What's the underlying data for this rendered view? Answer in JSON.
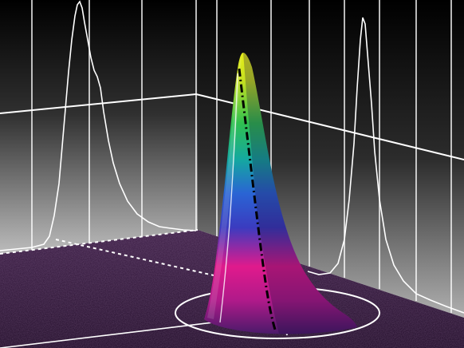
{
  "image": {
    "subject": "3d-gaussian-beam-profile",
    "colors": {
      "background_top": "#000000",
      "background_bottom": "#b8b8b8",
      "floor": "#2a0f33",
      "grid_line": "#ffffff",
      "peak_top": "#d8e81a",
      "peak_mid_green": "#36c24a",
      "peak_mid_blue": "#2a5fd0",
      "peak_low_magenta": "#e0188c",
      "peak_base_purple": "#5a1c7a"
    },
    "icons": []
  }
}
